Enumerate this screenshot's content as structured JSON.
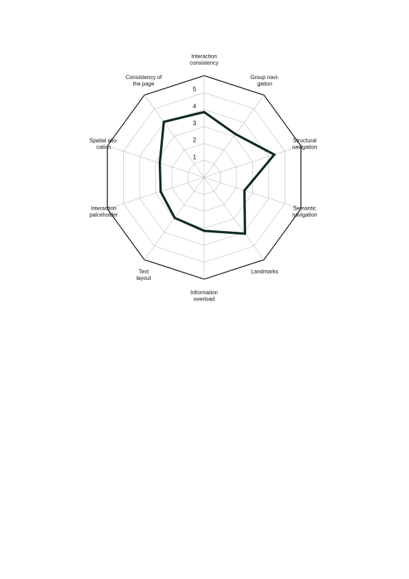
{
  "chart_data": {
    "type": "radar",
    "title": "",
    "axes": [
      {
        "lines": [
          "Interaction",
          "consistency"
        ]
      },
      {
        "lines": [
          "Group navi-",
          "gation"
        ]
      },
      {
        "lines": [
          "Structural",
          "navigation"
        ]
      },
      {
        "lines": [
          "Semantic",
          "navigation"
        ]
      },
      {
        "lines": [
          "Landmarks"
        ]
      },
      {
        "lines": [
          "Information",
          "overload"
        ]
      },
      {
        "lines": [
          "Text",
          "layout"
        ]
      },
      {
        "lines": [
          "Interaction",
          "palceholder"
        ]
      },
      {
        "lines": [
          "Spatial allo-",
          "cation"
        ]
      },
      {
        "lines": [
          "Consistency of",
          "the page"
        ]
      }
    ],
    "ticks": [
      "1",
      "2",
      "3",
      "4",
      "5"
    ],
    "scale_max": 6,
    "grid": true,
    "series": [
      {
        "values": [
          3.85,
          3.15,
          4.35,
          2.5,
          4.1,
          3.15,
          2.95,
          2.7,
          2.75,
          4.05
        ],
        "color": "#0f2a24"
      }
    ]
  }
}
